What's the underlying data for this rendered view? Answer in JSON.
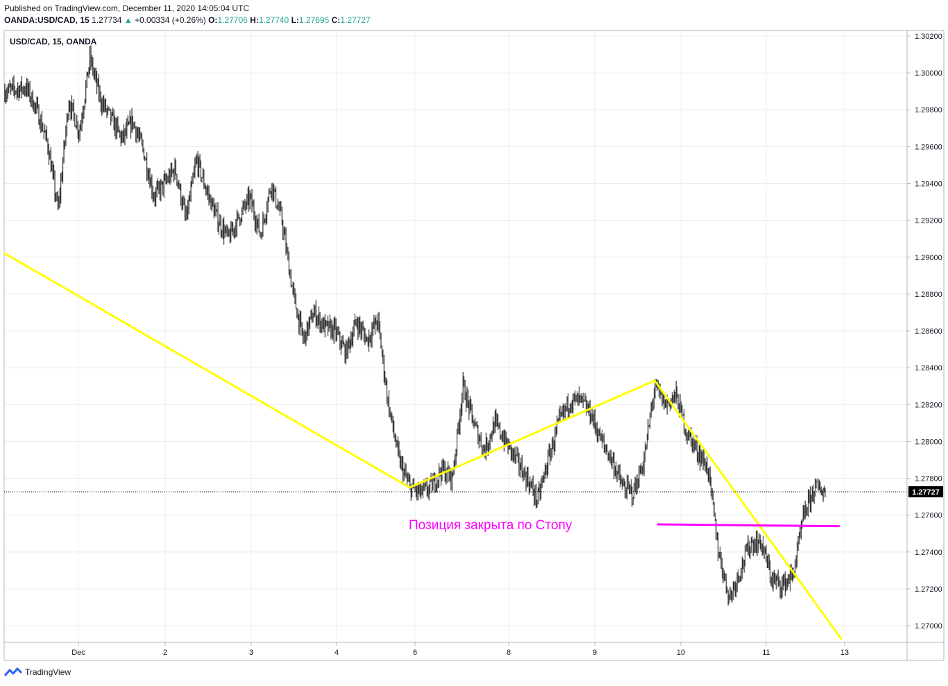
{
  "header": {
    "published": "Published on TradingView.com, December 11, 2020 14:05:04 UTC",
    "symbol": "OANDA:USD/CAD, 15",
    "last": "1.27734",
    "change": "+0.00334 (+0.26%)",
    "o_label": "O:",
    "o": "1.27706",
    "h_label": "H:",
    "h": "1.27740",
    "l_label": "L:",
    "l": "1.27695",
    "c_label": "C:",
    "c": "1.27727"
  },
  "footer": {
    "brand": "TradingView"
  },
  "colors": {
    "candle": "#000000",
    "trendline": "#ffff00",
    "stop_line": "#ff00ff",
    "grid": "#e9ecf1",
    "up": "#26a69a"
  },
  "chart_data": {
    "type": "line",
    "title": "USD/CAD, 15, OANDA",
    "annotation": "Позиция закрыта по Стопу",
    "price_badge": "1.27727",
    "x_ticks": [
      "Dec",
      "2",
      "3",
      "4",
      "6",
      "8",
      "9",
      "10",
      "11",
      "13"
    ],
    "y_ticks": [
      "1.30200",
      "1.30000",
      "1.29800",
      "1.29600",
      "1.29400",
      "1.29200",
      "1.29000",
      "1.28800",
      "1.28600",
      "1.28400",
      "1.28200",
      "1.28000",
      "1.27800",
      "1.27600",
      "1.27400",
      "1.27200",
      "1.27000"
    ],
    "ylim": [
      1.2691,
      1.3023
    ],
    "last_price": 1.27727,
    "price_waypoints": [
      [
        0,
        1.299
      ],
      [
        2,
        1.2992
      ],
      [
        3,
        1.298
      ],
      [
        4,
        1.2962
      ],
      [
        5,
        1.2925
      ],
      [
        6,
        1.2985
      ],
      [
        7,
        1.2968
      ],
      [
        8,
        1.3008
      ],
      [
        9,
        1.2985
      ],
      [
        10,
        1.2975
      ],
      [
        11,
        1.2964
      ],
      [
        12,
        1.2974
      ],
      [
        13,
        1.2958
      ],
      [
        14,
        1.2933
      ],
      [
        15,
        1.294
      ],
      [
        16,
        1.2948
      ],
      [
        17,
        1.292
      ],
      [
        18,
        1.2953
      ],
      [
        19,
        1.2935
      ],
      [
        20,
        1.292
      ],
      [
        21,
        1.291
      ],
      [
        22,
        1.2922
      ],
      [
        23,
        1.2932
      ],
      [
        24,
        1.2912
      ],
      [
        25,
        1.294
      ],
      [
        26,
        1.292
      ],
      [
        27,
        1.2882
      ],
      [
        28,
        1.2855
      ],
      [
        29,
        1.287
      ],
      [
        30,
        1.2862
      ],
      [
        31,
        1.286
      ],
      [
        32,
        1.2848
      ],
      [
        33,
        1.2865
      ],
      [
        34,
        1.2855
      ],
      [
        35,
        1.2866
      ],
      [
        36,
        1.282
      ],
      [
        37,
        1.279
      ],
      [
        38,
        1.2775
      ],
      [
        39,
        1.2772
      ],
      [
        40,
        1.2775
      ],
      [
        41,
        1.2785
      ],
      [
        42,
        1.278
      ],
      [
        43,
        1.283
      ],
      [
        44,
        1.281
      ],
      [
        45,
        1.2795
      ],
      [
        46,
        1.281
      ],
      [
        47,
        1.28
      ],
      [
        48,
        1.279
      ],
      [
        49,
        1.278
      ],
      [
        50,
        1.2768
      ],
      [
        51,
        1.279
      ],
      [
        52,
        1.281
      ],
      [
        53,
        1.2822
      ],
      [
        54,
        1.2822
      ],
      [
        55,
        1.2815
      ],
      [
        56,
        1.28
      ],
      [
        57,
        1.279
      ],
      [
        58,
        1.2775
      ],
      [
        59,
        1.2772
      ],
      [
        60,
        1.279
      ],
      [
        61,
        1.283
      ],
      [
        62,
        1.282
      ],
      [
        63,
        1.2825
      ],
      [
        64,
        1.2805
      ],
      [
        65,
        1.2795
      ],
      [
        66,
        1.2785
      ],
      [
        67,
        1.274
      ],
      [
        68,
        1.2715
      ],
      [
        69,
        1.273
      ],
      [
        70,
        1.2745
      ],
      [
        71,
        1.2745
      ],
      [
        72,
        1.2725
      ],
      [
        73,
        1.2722
      ],
      [
        74,
        1.2728
      ],
      [
        75,
        1.276
      ],
      [
        76,
        1.2775
      ],
      [
        77,
        1.2773
      ]
    ],
    "trendlines": [
      {
        "points": [
          [
            0,
            1.2902
          ],
          [
            38,
            1.2775
          ]
        ],
        "color": "#ffff00"
      },
      {
        "points": [
          [
            38,
            1.2775
          ],
          [
            61,
            1.2833
          ]
        ],
        "color": "#ffff00"
      },
      {
        "points": [
          [
            61,
            1.2833
          ],
          [
            78.5,
            1.2693
          ]
        ],
        "color": "#ffff00"
      },
      {
        "points": [
          [
            61.3,
            1.2755
          ],
          [
            78.3,
            1.2754
          ]
        ],
        "color": "#ff00ff"
      }
    ]
  }
}
